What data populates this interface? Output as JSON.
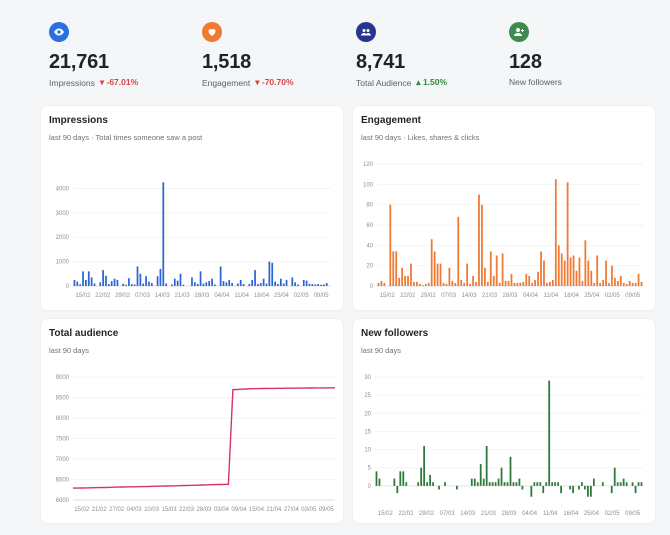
{
  "stats": [
    {
      "icon": "eye-icon",
      "value": "21,761",
      "label": "Impressions",
      "change": "-67.01%",
      "direction": "down",
      "color": "#2c6fe0"
    },
    {
      "icon": "heart-icon",
      "value": "1,518",
      "label": "Engagement",
      "change": "-70.70%",
      "direction": "down",
      "color": "#f07a33"
    },
    {
      "icon": "people-icon",
      "value": "8,741",
      "label": "Total Audience",
      "change": "1.50%",
      "direction": "up",
      "color": "#27358f"
    },
    {
      "icon": "add-person-icon",
      "value": "128",
      "label": "New followers",
      "change": "",
      "direction": "none",
      "color": "#3f8a4e"
    }
  ],
  "cards": {
    "impressions": {
      "title": "Impressions",
      "subtitle": "last 90 days · Total times someone saw a post"
    },
    "engagement": {
      "title": "Engagement",
      "subtitle": "last 90 days · Likes, shares & clicks"
    },
    "audience": {
      "title": "Total audience",
      "subtitle": "last 90 days"
    },
    "followers": {
      "title": "New followers",
      "subtitle": "last 90 days"
    }
  },
  "chart_data": [
    {
      "id": "impressions",
      "type": "bar",
      "color": "#2c62d6",
      "ylim": [
        0,
        5000
      ],
      "yticks": [
        0,
        1000,
        2000,
        3000,
        4000
      ],
      "xticks": [
        "15/02",
        "22/02",
        "29/02",
        "07/03",
        "14/03",
        "21/03",
        "28/03",
        "04/04",
        "11/04",
        "18/04",
        "25/04",
        "02/05",
        "09/05"
      ],
      "values": [
        250,
        180,
        70,
        600,
        250,
        600,
        350,
        100,
        0,
        150,
        650,
        420,
        80,
        200,
        300,
        250,
        0,
        90,
        50,
        320,
        80,
        60,
        800,
        500,
        100,
        400,
        180,
        120,
        0,
        400,
        700,
        4250,
        100,
        0,
        60,
        300,
        220,
        500,
        50,
        0,
        0,
        350,
        150,
        80,
        600,
        100,
        150,
        200,
        300,
        60,
        0,
        800,
        200,
        150,
        250,
        120,
        0,
        100,
        250,
        80,
        0,
        80,
        250,
        650,
        80,
        120,
        300,
        100,
        1000,
        950,
        180,
        80,
        300,
        100,
        250,
        0,
        350,
        150,
        60,
        0,
        250,
        220,
        90,
        80,
        60,
        80,
        50,
        60,
        120,
        0
      ]
    },
    {
      "id": "engagement",
      "type": "bar",
      "color": "#ef7a33",
      "ylim": [
        0,
        120
      ],
      "yticks": [
        0,
        20,
        40,
        60,
        80,
        100,
        120
      ],
      "xticks": [
        "15/02",
        "22/02",
        "29/02",
        "07/03",
        "14/03",
        "21/03",
        "28/03",
        "04/04",
        "11/04",
        "18/04",
        "25/04",
        "02/05",
        "09/05"
      ],
      "values": [
        3,
        5,
        3,
        0,
        80,
        34,
        34,
        8,
        18,
        10,
        10,
        22,
        4,
        4,
        2,
        1,
        2,
        3,
        46,
        34,
        22,
        22,
        3,
        2,
        18,
        5,
        3,
        68,
        6,
        3,
        22,
        2,
        10,
        4,
        90,
        80,
        18,
        4,
        34,
        10,
        30,
        3,
        32,
        5,
        5,
        12,
        3,
        3,
        3,
        4,
        12,
        10,
        3,
        6,
        14,
        34,
        25,
        3,
        4,
        6,
        105,
        40,
        32,
        25,
        102,
        28,
        30,
        15,
        28,
        5,
        45,
        25,
        15,
        3,
        30,
        3,
        6,
        25,
        3,
        20,
        8,
        5,
        10,
        3,
        2,
        5,
        3,
        3,
        12,
        4
      ]
    },
    {
      "id": "audience",
      "type": "line",
      "color": "#d6336c",
      "ylim": [
        6000,
        9000
      ],
      "yticks": [
        6000,
        6500,
        7000,
        7500,
        8000,
        8500,
        9000
      ],
      "xticks": [
        "15/02",
        "21/02",
        "27/02",
        "04/03",
        "10/03",
        "15/03",
        "22/03",
        "28/03",
        "03/04",
        "09/04",
        "15/04",
        "21/04",
        "27/04",
        "03/05",
        "09/05"
      ],
      "values": [
        6290,
        6291,
        6293,
        6295,
        6298,
        6300,
        6302,
        6305,
        6308,
        6311,
        6315,
        6317,
        6319,
        6321,
        6323,
        6325,
        6328,
        6330,
        6333,
        6336,
        6338,
        6341,
        6344,
        6346,
        6350,
        6353,
        6356,
        6359,
        6362,
        6365,
        6368,
        6372,
        6375,
        6378,
        6381,
        6385,
        8690,
        8695,
        8703,
        8707,
        8712,
        8715,
        8718,
        8720,
        8722,
        8723,
        8724,
        8725,
        8726,
        8727,
        8728,
        8729,
        8730,
        8731,
        8732,
        8733,
        8734,
        8735,
        8736,
        8737
      ]
    },
    {
      "id": "followers",
      "type": "bar",
      "color": "#2f7a3b",
      "ylim": [
        -5,
        30
      ],
      "yticks": [
        0,
        5,
        10,
        15,
        20,
        25,
        30
      ],
      "xticks": [
        "15/02",
        "22/02",
        "29/02",
        "07/03",
        "14/03",
        "21/03",
        "28/03",
        "04/04",
        "11/04",
        "16/04",
        "25/04",
        "02/05",
        "09/05"
      ],
      "values": [
        4,
        2,
        0,
        0,
        0,
        0,
        2,
        -2,
        4,
        4,
        1,
        0,
        0,
        0,
        1,
        5,
        11,
        1,
        3,
        1,
        0,
        -1,
        0,
        1,
        0,
        0,
        0,
        -1,
        0,
        0,
        0,
        0,
        2,
        2,
        1,
        6,
        2,
        11,
        1,
        1,
        1,
        2,
        5,
        1,
        1,
        8,
        1,
        1,
        2,
        -1,
        0,
        0,
        -3,
        1,
        1,
        1,
        -2,
        1,
        29,
        1,
        1,
        1,
        -2,
        0,
        0,
        -1,
        -2,
        0,
        -1,
        1,
        -1,
        -3,
        -3,
        2,
        0,
        0,
        1,
        0,
        0,
        -2,
        5,
        1,
        1,
        2,
        1,
        0,
        1,
        -2,
        1,
        1
      ]
    }
  ]
}
